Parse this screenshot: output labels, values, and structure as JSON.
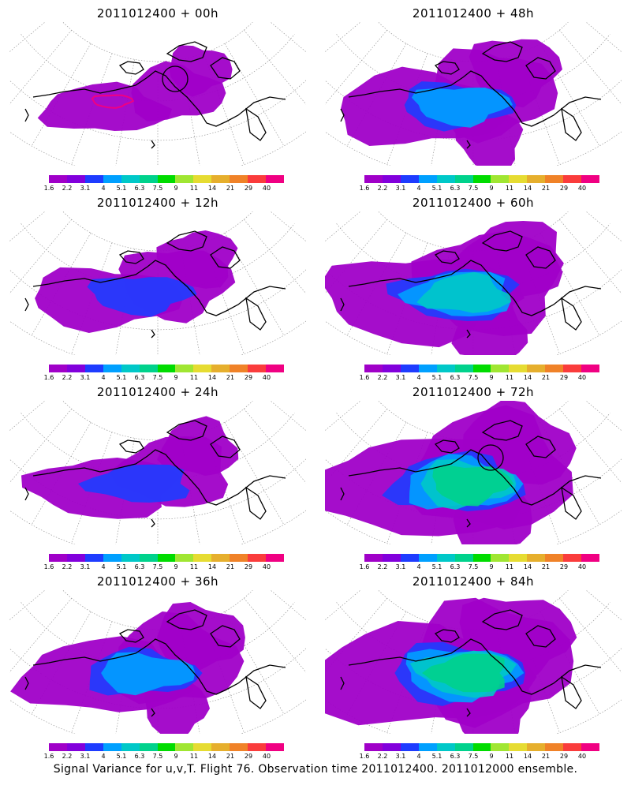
{
  "caption": "Signal Variance for u,v,T. Flight 76. Observation time 2011012400. 2011012000 ensemble.",
  "colorbar": {
    "colors": [
      "#a000c8",
      "#8200dc",
      "#1e3cff",
      "#00a0ff",
      "#00c8c8",
      "#00d28c",
      "#00dc00",
      "#a0e632",
      "#e6dc32",
      "#e6af2d",
      "#f08228",
      "#fa3c3c",
      "#f00082"
    ],
    "labels": [
      "1.6",
      "2.2",
      "3.1",
      "4",
      "5.1",
      "6.3",
      "7.5",
      "9",
      "11",
      "14",
      "21",
      "29",
      "40"
    ]
  },
  "panels": [
    {
      "title": "2011012400 + 00h",
      "intensity": 0,
      "circle": true
    },
    {
      "title": "2011012400 + 48h",
      "intensity": 2,
      "circle": false
    },
    {
      "title": "2011012400 + 12h",
      "intensity": 1,
      "circle": false
    },
    {
      "title": "2011012400 + 60h",
      "intensity": 3,
      "circle": false
    },
    {
      "title": "2011012400 + 24h",
      "intensity": 1,
      "circle": false
    },
    {
      "title": "2011012400 + 72h",
      "intensity": 4,
      "circle": true
    },
    {
      "title": "2011012400 + 36h",
      "intensity": 2,
      "circle": false
    },
    {
      "title": "2011012400 + 84h",
      "intensity": 4,
      "circle": false
    }
  ]
}
